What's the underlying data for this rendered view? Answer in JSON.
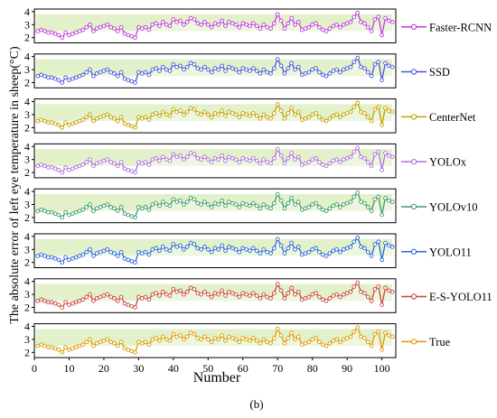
{
  "figure": {
    "caption": "(b)"
  },
  "chart_data": {
    "type": "line",
    "xlabel": "Number",
    "ylabel": "The absolute error of left eye temperature in sheep(°C)",
    "xlim": [
      0,
      104
    ],
    "ylim": [
      1.6,
      4.2
    ],
    "xticks": [
      0,
      10,
      20,
      30,
      40,
      50,
      60,
      70,
      80,
      90,
      100
    ],
    "yticks": [
      2,
      3,
      4
    ],
    "legend_position": "right",
    "band": {
      "from": 2.5,
      "to": 3.8,
      "color": "#dff0c4"
    },
    "x": [
      1,
      2,
      3,
      4,
      5,
      6,
      7,
      8,
      9,
      10,
      11,
      12,
      13,
      14,
      15,
      16,
      17,
      18,
      19,
      20,
      21,
      22,
      23,
      24,
      25,
      26,
      27,
      28,
      29,
      30,
      31,
      32,
      33,
      34,
      35,
      36,
      37,
      38,
      39,
      40,
      41,
      42,
      43,
      44,
      45,
      46,
      47,
      48,
      49,
      50,
      51,
      52,
      53,
      54,
      55,
      56,
      57,
      58,
      59,
      60,
      61,
      62,
      63,
      64,
      65,
      66,
      67,
      68,
      69,
      70,
      71,
      72,
      73,
      74,
      75,
      76,
      77,
      78,
      79,
      80,
      81,
      82,
      83,
      84,
      85,
      86,
      87,
      88,
      89,
      90,
      91,
      92,
      93,
      94,
      95,
      96,
      97,
      98,
      99,
      100,
      101,
      102,
      103
    ],
    "values": [
      2.5,
      2.6,
      2.5,
      2.4,
      2.4,
      2.3,
      2.2,
      2.0,
      2.4,
      2.2,
      2.3,
      2.4,
      2.5,
      2.6,
      2.8,
      3.0,
      2.5,
      2.7,
      2.8,
      2.9,
      3.0,
      2.8,
      2.7,
      2.5,
      2.8,
      2.3,
      2.2,
      2.1,
      2.0,
      2.8,
      2.7,
      2.8,
      2.6,
      3.0,
      3.1,
      2.9,
      3.2,
      3.0,
      2.9,
      3.4,
      3.2,
      3.3,
      3.0,
      3.2,
      3.5,
      3.4,
      3.1,
      3.0,
      3.2,
      3.0,
      2.8,
      3.1,
      3.0,
      3.3,
      2.9,
      3.2,
      3.1,
      3.0,
      2.8,
      3.1,
      3.0,
      2.9,
      3.1,
      2.9,
      2.7,
      3.0,
      2.8,
      2.7,
      3.1,
      3.8,
      3.3,
      2.7,
      3.1,
      3.5,
      3.0,
      3.2,
      2.6,
      2.7,
      2.8,
      3.0,
      3.1,
      2.8,
      2.6,
      2.5,
      2.7,
      2.9,
      3.0,
      2.8,
      3.0,
      3.1,
      3.2,
      3.6,
      3.9,
      3.2,
      3.1,
      2.8,
      2.5,
      3.4,
      3.6,
      2.2,
      3.5,
      3.3,
      3.2
    ],
    "series": [
      {
        "name": "Faster-RCNN",
        "color": "#c03bd9"
      },
      {
        "name": "SSD",
        "color": "#4a55d8"
      },
      {
        "name": "CenterNet",
        "color": "#c4a000"
      },
      {
        "name": "YOLOx",
        "color": "#b26ee0"
      },
      {
        "name": "YOLOv10",
        "color": "#3f9a6e"
      },
      {
        "name": "YOLO11",
        "color": "#2a66d8"
      },
      {
        "name": "E-S-YOLO11",
        "color": "#c8453f"
      },
      {
        "name": "True",
        "color": "#dd9a00"
      }
    ]
  }
}
